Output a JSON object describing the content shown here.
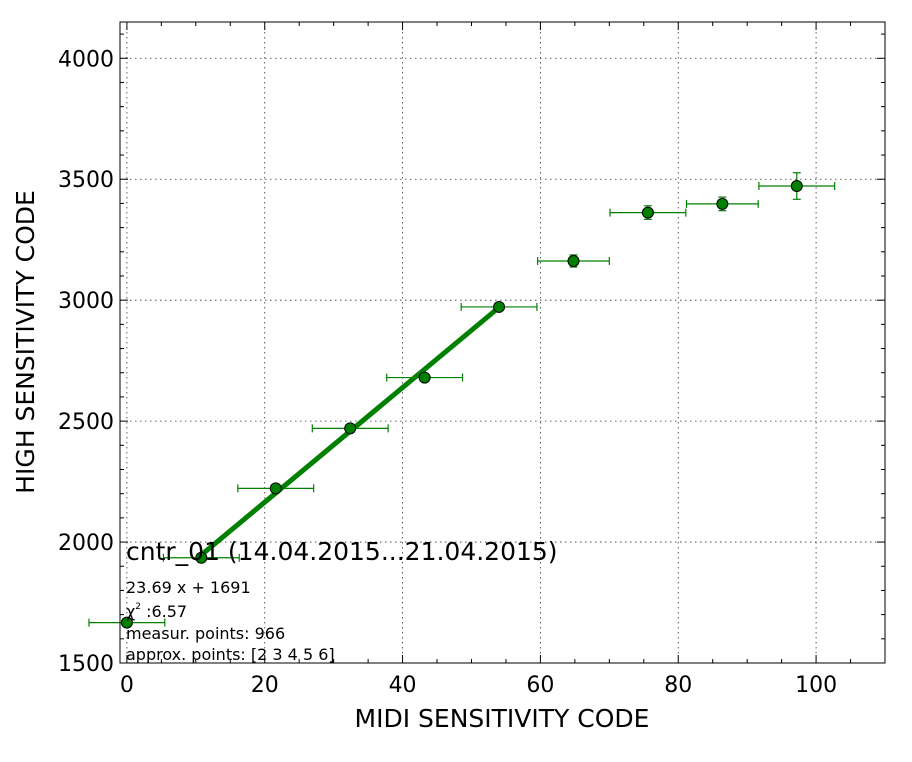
{
  "chart_data": {
    "type": "scatter",
    "xlabel": "MIDI SENSITIVITY CODE",
    "ylabel": "HIGH SENSITIVITY CODE",
    "xlim": [
      -1,
      110
    ],
    "ylim": [
      1500,
      4150
    ],
    "xticks": [
      0,
      20,
      40,
      60,
      80,
      100
    ],
    "yticks": [
      1500,
      2000,
      2500,
      3000,
      3500,
      4000
    ],
    "grid": true,
    "colors": {
      "points": "#008000",
      "fit": "#008000",
      "edge": "#000000"
    },
    "series": [
      {
        "points": [
          {
            "x": 0.0,
            "y": 1667,
            "xerr": 5.5,
            "yerr": 8
          },
          {
            "x": 10.8,
            "y": 1935,
            "xerr": 5.5,
            "yerr": 8
          },
          {
            "x": 21.6,
            "y": 2222,
            "xerr": 5.5,
            "yerr": 8
          },
          {
            "x": 32.4,
            "y": 2470,
            "xerr": 5.5,
            "yerr": 10
          },
          {
            "x": 43.2,
            "y": 2680,
            "xerr": 5.5,
            "yerr": 10
          },
          {
            "x": 54.0,
            "y": 2972,
            "xerr": 5.5,
            "yerr": 12
          },
          {
            "x": 64.8,
            "y": 3162,
            "xerr": 5.2,
            "yerr": 25
          },
          {
            "x": 75.6,
            "y": 3362,
            "xerr": 5.5,
            "yerr": 28
          },
          {
            "x": 86.4,
            "y": 3398,
            "xerr": 5.2,
            "yerr": 28
          },
          {
            "x": 97.2,
            "y": 3472,
            "xerr": 5.5,
            "yerr": 55
          }
        ]
      }
    ],
    "fit_line": {
      "x_start": 10.8,
      "x_end": 54.0,
      "slope": 23.69,
      "intercept": 1691
    },
    "annotations": {
      "title": "cntr_01 (14.04.2015...21.04.2015)",
      "equation": "23.69 x + 1691",
      "chi_symbol": "χ",
      "chi_exp": "2",
      "chi_value": " :6.57",
      "measur_points": "measur. points: 966",
      "approx_points": "approx. points: [2 3 4 5 6]"
    }
  }
}
